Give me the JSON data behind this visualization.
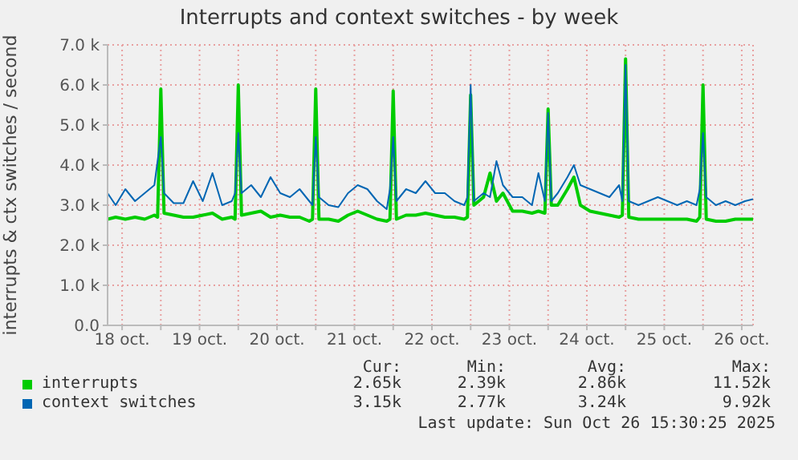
{
  "chart_data": {
    "type": "line",
    "title": "Interrupts and context switches - by week",
    "ylabel": "interrupts & ctx switches / second",
    "x": [
      "2025-10-18T07:30",
      "2025-10-18T10:00",
      "2025-10-18T13:00",
      "2025-10-18T16:00",
      "2025-10-18T19:00",
      "2025-10-18T22:00",
      "2025-10-18T23:00",
      "2025-10-19T00:00",
      "2025-10-19T01:00",
      "2025-10-19T04:00",
      "2025-10-19T07:00",
      "2025-10-19T10:00",
      "2025-10-19T13:00",
      "2025-10-19T16:00",
      "2025-10-19T19:00",
      "2025-10-19T22:00",
      "2025-10-19T23:00",
      "2025-10-20T00:00",
      "2025-10-20T01:00",
      "2025-10-20T04:00",
      "2025-10-20T07:00",
      "2025-10-20T10:00",
      "2025-10-20T13:00",
      "2025-10-20T16:00",
      "2025-10-20T19:00",
      "2025-10-20T22:00",
      "2025-10-20T23:00",
      "2025-10-21T00:00",
      "2025-10-21T01:00",
      "2025-10-21T04:00",
      "2025-10-21T07:00",
      "2025-10-21T10:00",
      "2025-10-21T13:00",
      "2025-10-21T16:00",
      "2025-10-21T19:00",
      "2025-10-21T22:00",
      "2025-10-21T23:00",
      "2025-10-22T00:00",
      "2025-10-22T01:00",
      "2025-10-22T04:00",
      "2025-10-22T07:00",
      "2025-10-22T10:00",
      "2025-10-22T13:00",
      "2025-10-22T16:00",
      "2025-10-22T19:00",
      "2025-10-22T22:00",
      "2025-10-22T23:00",
      "2025-10-23T00:00",
      "2025-10-23T01:00",
      "2025-10-23T04:00",
      "2025-10-23T06:00",
      "2025-10-23T08:00",
      "2025-10-23T10:00",
      "2025-10-23T13:00",
      "2025-10-23T16:00",
      "2025-10-23T19:00",
      "2025-10-23T21:00",
      "2025-10-23T23:00",
      "2025-10-24T00:00",
      "2025-10-24T01:00",
      "2025-10-24T03:00",
      "2025-10-24T06:00",
      "2025-10-24T08:00",
      "2025-10-24T10:00",
      "2025-10-24T13:00",
      "2025-10-24T16:00",
      "2025-10-24T19:00",
      "2025-10-24T22:00",
      "2025-10-24T23:00",
      "2025-10-25T00:00",
      "2025-10-25T01:00",
      "2025-10-25T04:00",
      "2025-10-25T07:00",
      "2025-10-25T10:00",
      "2025-10-25T13:00",
      "2025-10-25T16:00",
      "2025-10-25T19:00",
      "2025-10-25T22:00",
      "2025-10-25T23:00",
      "2025-10-26T00:00",
      "2025-10-26T01:00",
      "2025-10-26T04:00",
      "2025-10-26T07:00",
      "2025-10-26T10:00",
      "2025-10-26T13:00",
      "2025-10-26T15:30"
    ],
    "series": [
      {
        "name": "interrupts",
        "color": "#00cc00",
        "values": [
          2650,
          2700,
          2650,
          2700,
          2650,
          2750,
          2700,
          5900,
          2800,
          2750,
          2700,
          2700,
          2750,
          2800,
          2650,
          2700,
          2650,
          6000,
          2750,
          2800,
          2850,
          2700,
          2750,
          2700,
          2700,
          2600,
          2650,
          5900,
          2650,
          2650,
          2600,
          2750,
          2850,
          2750,
          2650,
          2600,
          2650,
          5850,
          2650,
          2750,
          2750,
          2800,
          2750,
          2700,
          2700,
          2650,
          2700,
          5750,
          3000,
          3200,
          3800,
          3100,
          3300,
          2850,
          2850,
          2800,
          2850,
          2800,
          5400,
          3000,
          3000,
          3400,
          3700,
          3000,
          2850,
          2800,
          2750,
          2700,
          2750,
          6650,
          2700,
          2650,
          2650,
          2650,
          2650,
          2650,
          2650,
          2600,
          2700,
          6000,
          2650,
          2600,
          2600,
          2650,
          2650,
          2650
        ]
      },
      {
        "name": "context switches",
        "color": "#0066b3",
        "values": [
          3300,
          3000,
          3400,
          3100,
          3300,
          3500,
          4100,
          4700,
          3300,
          3050,
          3050,
          3600,
          3100,
          3800,
          3000,
          3100,
          3300,
          4800,
          3300,
          3500,
          3200,
          3700,
          3300,
          3200,
          3400,
          3100,
          3000,
          4700,
          3200,
          3000,
          2950,
          3300,
          3500,
          3400,
          3100,
          2900,
          3400,
          4700,
          3100,
          3400,
          3300,
          3600,
          3300,
          3300,
          3100,
          3000,
          3200,
          6000,
          3100,
          3300,
          3200,
          4100,
          3500,
          3200,
          3200,
          3000,
          3800,
          3100,
          5300,
          3100,
          3300,
          3700,
          4000,
          3500,
          3400,
          3300,
          3200,
          3500,
          3100,
          6500,
          3100,
          3000,
          3100,
          3200,
          3100,
          3000,
          3100,
          3000,
          3400,
          4800,
          3200,
          3000,
          3100,
          3000,
          3100,
          3150
        ]
      }
    ],
    "xlim": [
      "2025-10-18T07:30",
      "2025-10-26T15:30"
    ],
    "xticks": [
      {
        "value": "2025-10-18T12:00",
        "label": "18 oct."
      },
      {
        "value": "2025-10-19T00:00",
        "label": null
      },
      {
        "value": "2025-10-19T12:00",
        "label": "19 oct."
      },
      {
        "value": "2025-10-20T00:00",
        "label": null
      },
      {
        "value": "2025-10-20T12:00",
        "label": "20 oct."
      },
      {
        "value": "2025-10-21T00:00",
        "label": null
      },
      {
        "value": "2025-10-21T12:00",
        "label": "21 oct."
      },
      {
        "value": "2025-10-22T00:00",
        "label": null
      },
      {
        "value": "2025-10-22T12:00",
        "label": "22 oct."
      },
      {
        "value": "2025-10-23T00:00",
        "label": null
      },
      {
        "value": "2025-10-23T12:00",
        "label": "23 oct."
      },
      {
        "value": "2025-10-24T00:00",
        "label": null
      },
      {
        "value": "2025-10-24T12:00",
        "label": "24 oct."
      },
      {
        "value": "2025-10-25T00:00",
        "label": null
      },
      {
        "value": "2025-10-25T12:00",
        "label": "25 oct."
      },
      {
        "value": "2025-10-26T00:00",
        "label": null
      },
      {
        "value": "2025-10-26T12:00",
        "label": "26 oct."
      }
    ],
    "ylim": [
      0,
      7000
    ],
    "yticks": [
      {
        "value": 0,
        "label": "0.0"
      },
      {
        "value": 1000,
        "label": "1.0 k"
      },
      {
        "value": 2000,
        "label": "2.0 k"
      },
      {
        "value": 3000,
        "label": "3.0 k"
      },
      {
        "value": 4000,
        "label": "4.0 k"
      },
      {
        "value": 5000,
        "label": "5.0 k"
      },
      {
        "value": 6000,
        "label": "6.0 k"
      },
      {
        "value": 7000,
        "label": "7.0 k"
      }
    ],
    "grid": true,
    "legend": "bottom",
    "marker": "none",
    "line_style": "solid",
    "annotations": [
      "Cur:",
      "Min:",
      "Avg:",
      "Max:",
      "2.65k",
      "2.39k",
      "2.86k",
      "11.52k",
      "3.15k",
      "2.77k",
      "3.24k",
      "9.92k",
      "Last update: Sun Oct 26 15:30:25 2025"
    ]
  }
}
